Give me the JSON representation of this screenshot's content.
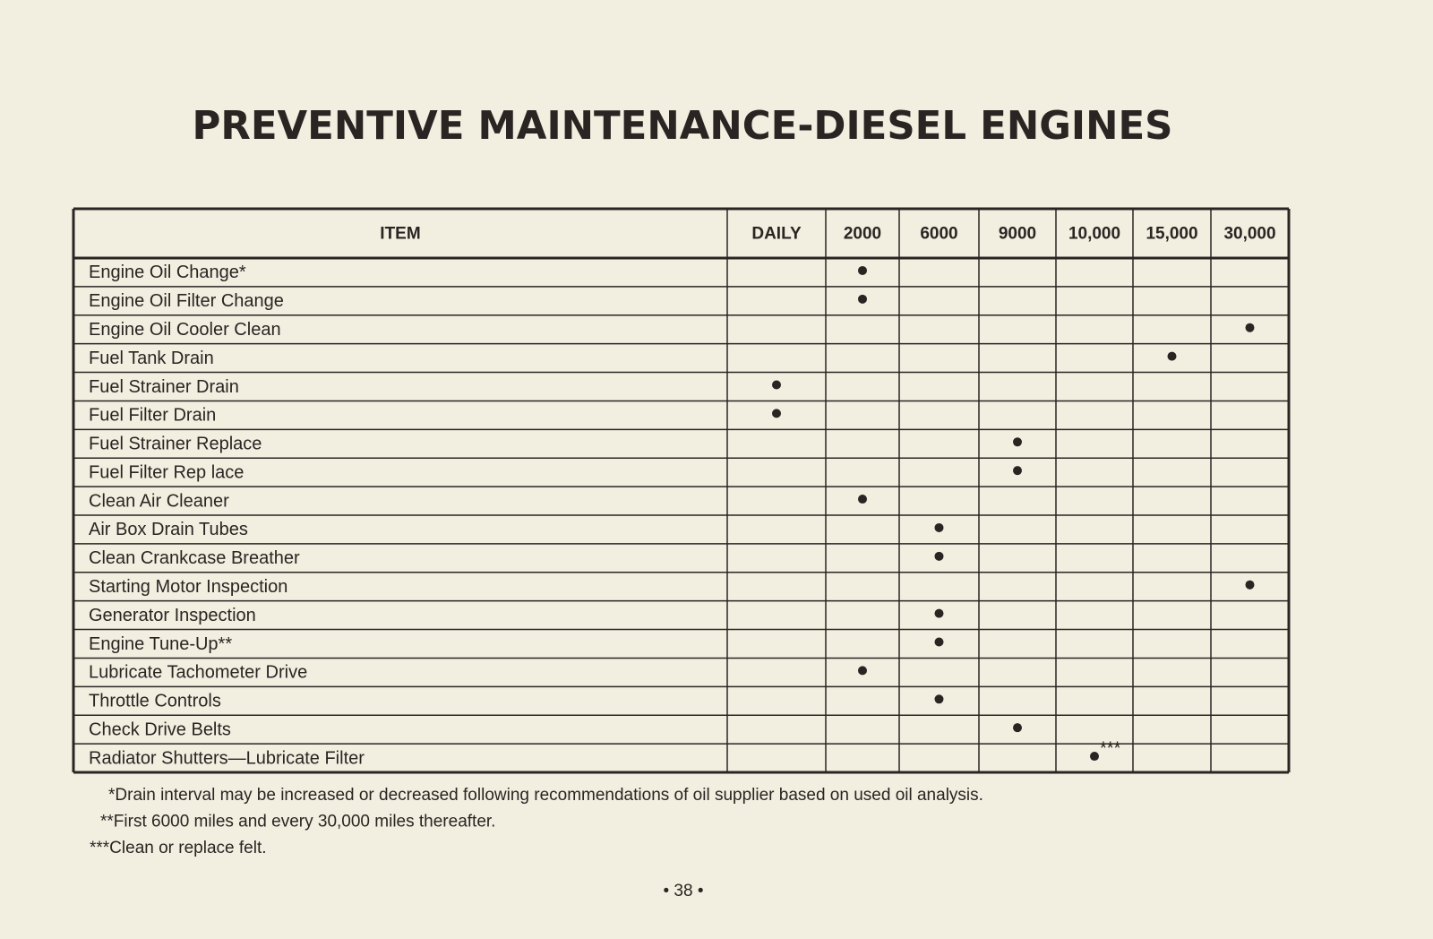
{
  "title": "PREVENTIVE MAINTENANCE-DIESEL ENGINES",
  "table": {
    "headers": [
      "ITEM",
      "DAILY",
      "2000",
      "6000",
      "9000",
      "10,000",
      "15,000",
      "30,000"
    ],
    "rows": [
      {
        "item": "Engine Oil Change*",
        "column": 2
      },
      {
        "item": "Engine Oil Filter Change",
        "column": 2
      },
      {
        "item": "Engine Oil Cooler Clean",
        "column": 7
      },
      {
        "item": "Fuel Tank Drain",
        "column": 6
      },
      {
        "item": "Fuel Strainer Drain",
        "column": 1
      },
      {
        "item": "Fuel Filter Drain",
        "column": 1
      },
      {
        "item": "Fuel Strainer Replace",
        "column": 4
      },
      {
        "item": "Fuel Filter Rep lace",
        "column": 4
      },
      {
        "item": "Clean Air Cleaner",
        "column": 2
      },
      {
        "item": "Air Box Drain Tubes",
        "column": 3
      },
      {
        "item": "Clean Crankcase Breather",
        "column": 3
      },
      {
        "item": "Starting Motor Inspection",
        "column": 7
      },
      {
        "item": "Generator Inspection",
        "column": 3
      },
      {
        "item": "Engine Tune-Up**",
        "column": 3
      },
      {
        "item": "Lubricate Tachometer Drive",
        "column": 2
      },
      {
        "item": "Throttle Controls",
        "column": 3
      },
      {
        "item": "Check Drive Belts",
        "column": 4
      },
      {
        "item": "Radiator Shutters—Lubricate Filter",
        "column": 5,
        "note": "***"
      }
    ]
  },
  "footnotes": [
    "*Drain interval may be increased or decreased following recommendations of oil supplier based on used oil analysis.",
    "**First 6000 miles and every 30,000 miles thereafter.",
    "***Clean or replace felt."
  ],
  "page_number": "38"
}
